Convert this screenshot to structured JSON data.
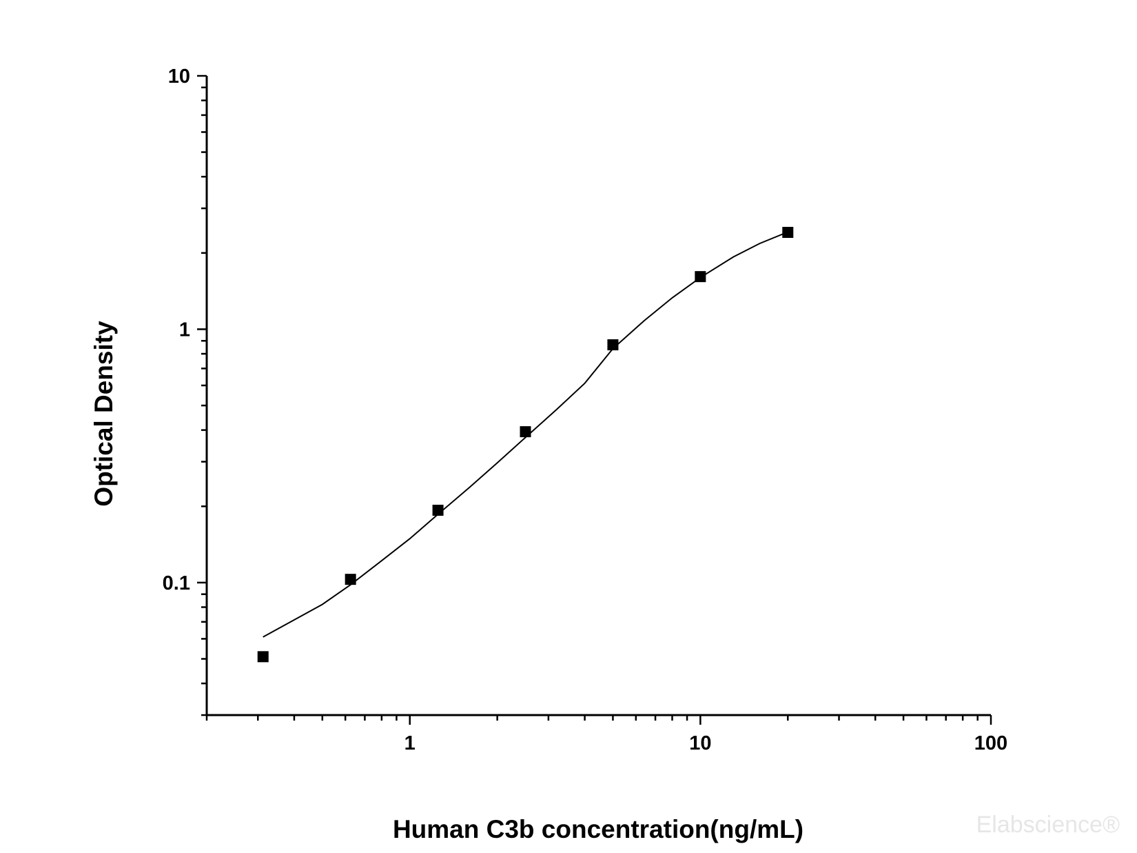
{
  "chart_data": {
    "type": "scatter",
    "title": "",
    "xlabel": "Human C3b concentration(ng/mL)",
    "ylabel": "Optical Density",
    "xscale": "log",
    "yscale": "log",
    "xlim": [
      0.2,
      100
    ],
    "ylim": [
      0.03,
      10
    ],
    "x_ticks": [
      {
        "value": 1,
        "label": "1"
      },
      {
        "value": 10,
        "label": "10"
      },
      {
        "value": 100,
        "label": "100"
      }
    ],
    "y_ticks": [
      {
        "value": 0.1,
        "label": "0.1"
      },
      {
        "value": 1,
        "label": "1"
      },
      {
        "value": 10,
        "label": "10"
      }
    ],
    "grid": false,
    "legend": "none",
    "series": [
      {
        "marker": "square",
        "color": "#000000",
        "x": [
          0.3125,
          0.625,
          1.25,
          2.5,
          5,
          10,
          20
        ],
        "y": [
          0.051,
          0.103,
          0.193,
          0.394,
          0.868,
          1.613,
          2.411
        ]
      }
    ],
    "fit_curve": {
      "color": "#000000",
      "x": [
        0.3125,
        0.5,
        0.625,
        0.8,
        1.0,
        1.25,
        1.6,
        2.0,
        2.5,
        3.2,
        4.0,
        5.0,
        6.4,
        8.0,
        10,
        13,
        16,
        20
      ],
      "y": [
        0.061,
        0.082,
        0.098,
        0.122,
        0.149,
        0.186,
        0.237,
        0.297,
        0.374,
        0.482,
        0.612,
        0.838,
        1.08,
        1.33,
        1.6,
        1.93,
        2.18,
        2.42
      ]
    },
    "watermark": "Elabscience®"
  }
}
